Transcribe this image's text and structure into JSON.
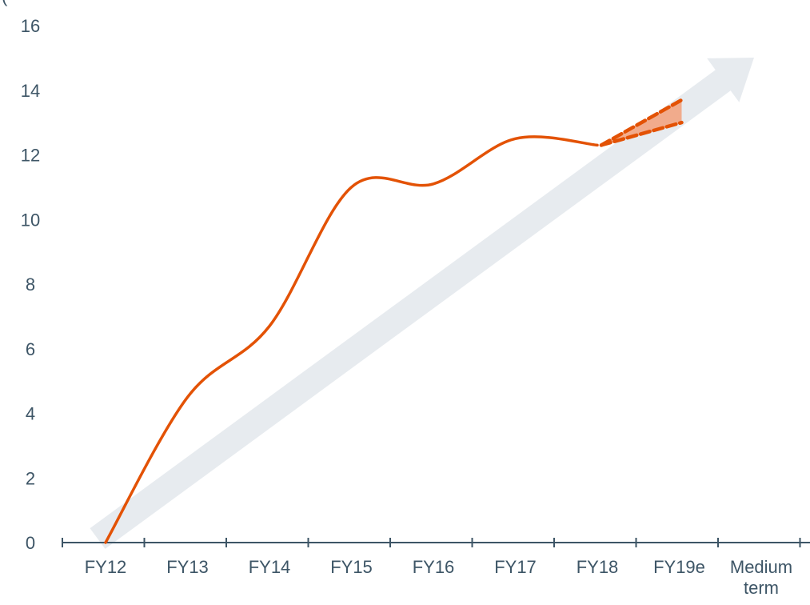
{
  "chart_data": {
    "type": "line",
    "title": "",
    "xlabel": "",
    "ylabel": "",
    "unit_label_fragment": "(",
    "categories": [
      "FY12",
      "FY13",
      "FY14",
      "FY15",
      "FY16",
      "FY17",
      "FY18",
      "FY19e",
      "Medium term"
    ],
    "ylim": [
      0,
      16
    ],
    "yticks": [
      0,
      2,
      4,
      6,
      8,
      10,
      12,
      14,
      16
    ],
    "grid": false,
    "legend": "none",
    "series": [
      {
        "style": "solid",
        "color": "#e35205",
        "x": [
          "FY12",
          "FY13",
          "FY14",
          "FY15",
          "FY16",
          "FY17",
          "FY18"
        ],
        "values": [
          0,
          4.5,
          6.7,
          11.0,
          11.1,
          12.5,
          12.3
        ]
      }
    ],
    "estimate_range": {
      "style": "dashed",
      "color": "#e35205",
      "fill": "#f2a07a",
      "from": "FY18",
      "to": "FY19e",
      "start_value": 12.3,
      "low": 13.0,
      "high": 13.7
    },
    "trend_arrow": {
      "color": "#e7ebef",
      "from": {
        "x": "FY12",
        "value": 0
      },
      "to": {
        "x": "Medium term",
        "value": 15.0
      }
    },
    "axis_color": "#3d5566",
    "label_color": "#3d5566"
  }
}
